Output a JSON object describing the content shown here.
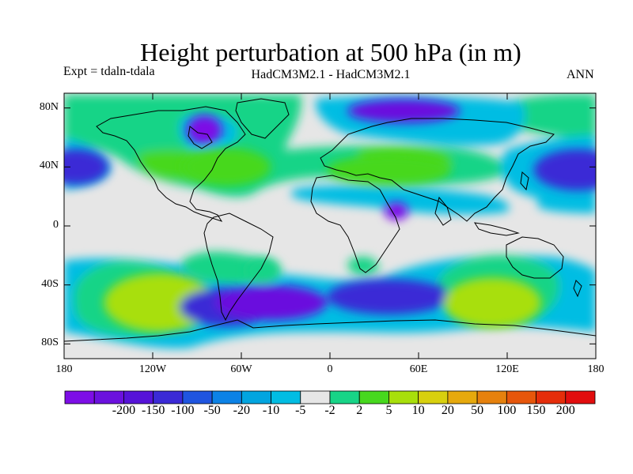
{
  "title": "Height perturbation at 500 hPa (in m)",
  "left_subtitle": "Expt = tdaln-tdala",
  "center_subtitle": "HadCM3M2.1 - HadCM3M2.1",
  "right_subtitle": "ANN",
  "lat_axis": {
    "range": [
      -90,
      90
    ],
    "ticks": [
      {
        "label": "80N",
        "value": 80
      },
      {
        "label": "40N",
        "value": 40
      },
      {
        "label": "0",
        "value": 0
      },
      {
        "label": "40S",
        "value": -40
      },
      {
        "label": "80S",
        "value": -80
      }
    ]
  },
  "lon_axis": {
    "range": [
      -180,
      180
    ],
    "ticks": [
      {
        "label": "180",
        "value": -180
      },
      {
        "label": "120W",
        "value": -120
      },
      {
        "label": "60W",
        "value": -60
      },
      {
        "label": "0",
        "value": 0
      },
      {
        "label": "60E",
        "value": 60
      },
      {
        "label": "120E",
        "value": 120
      },
      {
        "label": "180",
        "value": 180
      }
    ]
  },
  "colorbar": {
    "colors": [
      "#7d0ee6",
      "#6b11de",
      "#5613d8",
      "#3b2ad6",
      "#1f55e0",
      "#0c82e6",
      "#02a5e0",
      "#01bde3",
      "#e6e6e6",
      "#18d487",
      "#47d81e",
      "#a8df0b",
      "#d8d00e",
      "#e6a90d",
      "#e6810d",
      "#e6560b",
      "#e52d0a",
      "#e20d0e"
    ],
    "labels": [
      "-200",
      "-150",
      "-100",
      "-50",
      "-20",
      "-10",
      "-5",
      "-2",
      "2",
      "5",
      "10",
      "20",
      "50",
      "100",
      "150",
      "200"
    ]
  },
  "colors": {
    "background_zone": "#e6e6e6",
    "land_outline": "#000000"
  },
  "features": [
    {
      "lon": -115,
      "lat": -52,
      "rx": 38,
      "ry": 20,
      "level": 11
    },
    {
      "lon": -70,
      "lat": -55,
      "rx": 32,
      "ry": 13,
      "level": 3
    },
    {
      "lon": -40,
      "lat": -52,
      "rx": 38,
      "ry": 12,
      "level": 1
    },
    {
      "lon": 40,
      "lat": -48,
      "rx": 42,
      "ry": 12,
      "level": 3
    },
    {
      "lon": 110,
      "lat": -52,
      "rx": 33,
      "ry": 17,
      "level": 11
    },
    {
      "lon": 168,
      "lat": 38,
      "rx": 30,
      "ry": 14,
      "level": 3
    },
    {
      "lon": -172,
      "lat": 40,
      "rx": 22,
      "ry": 12,
      "level": 3
    },
    {
      "lon": -70,
      "lat": 40,
      "rx": 30,
      "ry": 13,
      "level": 10
    },
    {
      "lon": 40,
      "lat": 38,
      "rx": 42,
      "ry": 10,
      "level": 10
    },
    {
      "lon": 50,
      "lat": 78,
      "rx": 38,
      "ry": 8,
      "level": 1
    },
    {
      "lon": -85,
      "lat": 65,
      "rx": 12,
      "ry": 10,
      "level": 0
    },
    {
      "lon": -45,
      "lat": -30,
      "rx": 12,
      "ry": 8,
      "level": 9
    },
    {
      "lon": 45,
      "lat": 10,
      "rx": 8,
      "ry": 6,
      "level": 0
    }
  ]
}
